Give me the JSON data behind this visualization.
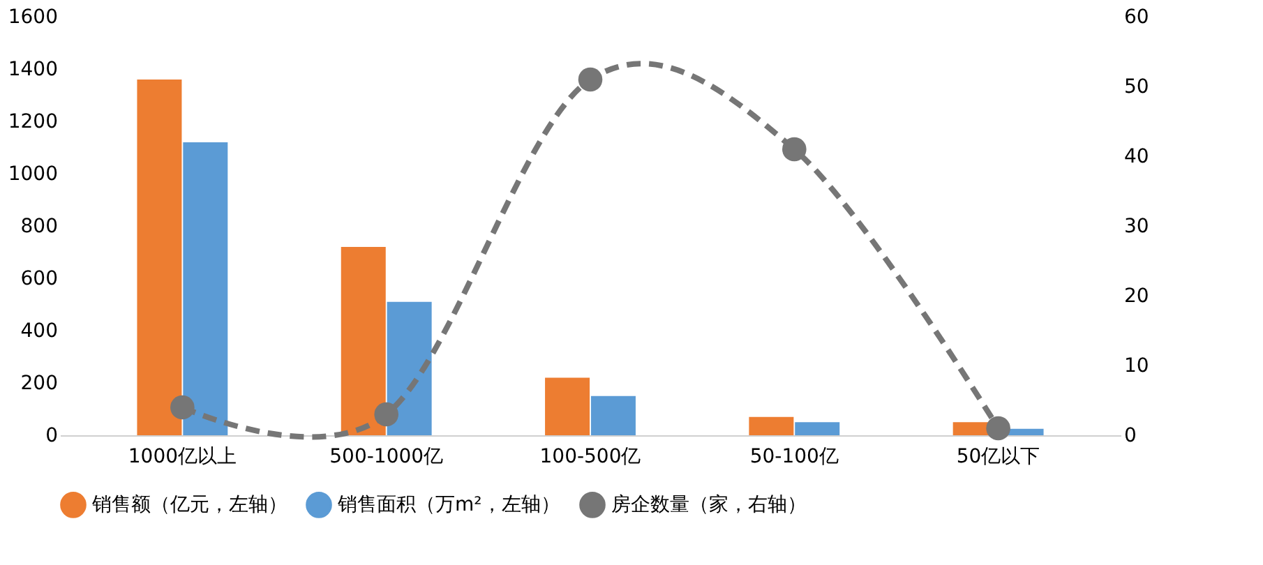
{
  "chart_data": {
    "type": "bar",
    "categories": [
      "1000亿以上",
      "500-1000亿",
      "100-500亿",
      "50-100亿",
      "50亿以下"
    ],
    "series": [
      {
        "name": "销售额（亿元，左轴）",
        "color": "#ed7d31",
        "values": [
          1360,
          720,
          220,
          70,
          50
        ]
      },
      {
        "name": "销售面积（万m²，左轴）",
        "color": "#5b9bd5",
        "values": [
          1120,
          510,
          150,
          50,
          25
        ]
      },
      {
        "name": "房企数量（家，右轴）",
        "color": "#767676",
        "type": "line",
        "axis": "y2",
        "marker": "circle",
        "line_style": "dashed",
        "values": [
          4,
          3,
          51,
          41,
          1
        ]
      }
    ],
    "ylim": [
      0,
      1600
    ],
    "yticks": [
      0,
      200,
      400,
      600,
      800,
      1000,
      1200,
      1400,
      1600
    ],
    "y2lim": [
      0,
      60
    ],
    "y2ticks": [
      0,
      10,
      20,
      30,
      40,
      50,
      60
    ],
    "grid": false,
    "legend": "bottom"
  }
}
